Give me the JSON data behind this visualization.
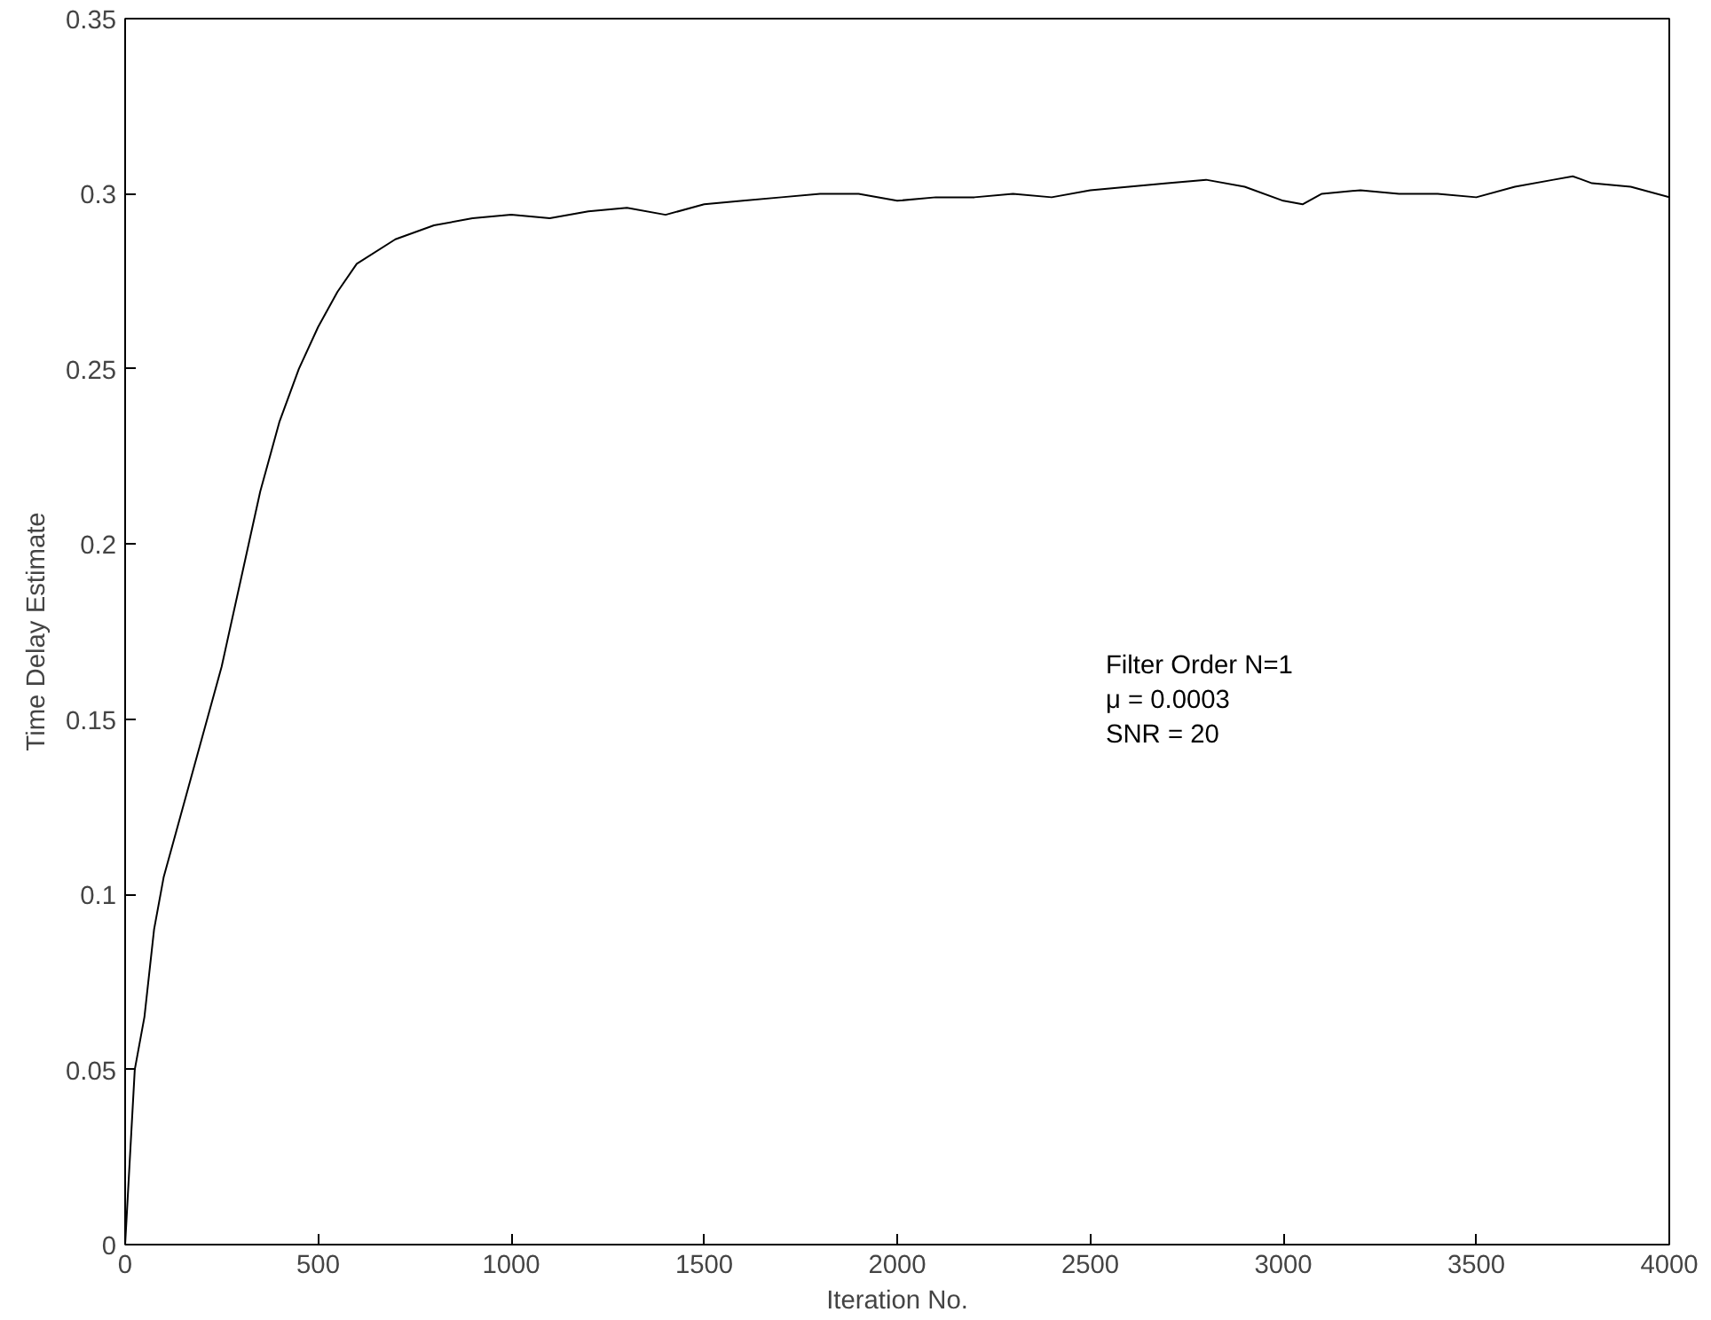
{
  "chart_data": {
    "type": "line",
    "xlabel": "Iteration No.",
    "ylabel": "Time Delay Estimate",
    "annotations": [
      "Filter Order N=1",
      "μ = 0.0003",
      "SNR = 20"
    ],
    "xlim": [
      0,
      4000
    ],
    "ylim": [
      0,
      0.35
    ],
    "xticks": [
      0,
      500,
      1000,
      1500,
      2000,
      2500,
      3000,
      3500,
      4000
    ],
    "yticks": [
      0,
      0.05,
      0.1,
      0.15,
      0.2,
      0.25,
      0.3,
      0.35
    ],
    "marker": "none",
    "line_style": "solid",
    "x": [
      0,
      25,
      50,
      75,
      100,
      150,
      200,
      250,
      300,
      350,
      400,
      450,
      500,
      550,
      600,
      700,
      800,
      900,
      1000,
      1100,
      1200,
      1300,
      1400,
      1500,
      1600,
      1700,
      1800,
      1900,
      2000,
      2100,
      2200,
      2300,
      2400,
      2500,
      2600,
      2700,
      2800,
      2900,
      3000,
      3050,
      3100,
      3200,
      3300,
      3400,
      3500,
      3600,
      3700,
      3750,
      3800,
      3900,
      4000
    ],
    "series": [
      {
        "color": "#000000",
        "values": [
          0,
          0.05,
          0.065,
          0.09,
          0.105,
          0.125,
          0.145,
          0.165,
          0.19,
          0.215,
          0.235,
          0.25,
          0.262,
          0.272,
          0.28,
          0.287,
          0.291,
          0.293,
          0.294,
          0.293,
          0.295,
          0.296,
          0.294,
          0.297,
          0.298,
          0.299,
          0.3,
          0.3,
          0.298,
          0.299,
          0.299,
          0.3,
          0.299,
          0.301,
          0.302,
          0.303,
          0.304,
          0.302,
          0.298,
          0.297,
          0.3,
          0.301,
          0.3,
          0.3,
          0.299,
          0.302,
          0.304,
          0.305,
          0.303,
          0.302,
          0.299
        ]
      }
    ]
  }
}
